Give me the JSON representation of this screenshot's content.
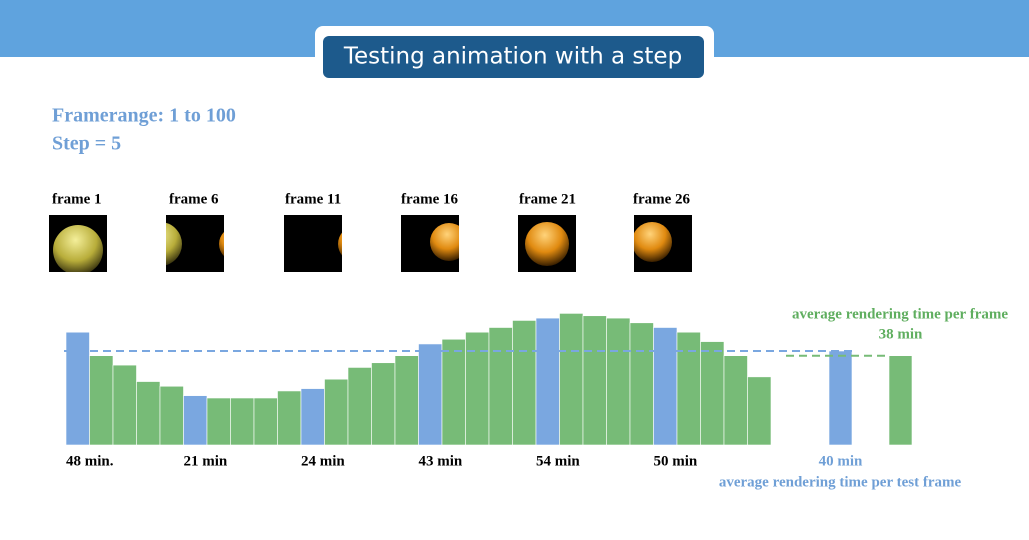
{
  "header": {
    "title": "Testing animation with a step"
  },
  "settings": {
    "framerange": "Framerange: 1 to 100",
    "step": "Step = 5"
  },
  "frames": [
    "frame 1",
    "frame 6",
    "frame 11",
    "frame 16",
    "frame 21",
    "frame 26"
  ],
  "chart_data": {
    "type": "bar",
    "values": [
      48,
      38,
      34,
      27,
      25,
      21,
      20,
      20,
      20,
      23,
      24,
      28,
      33,
      35,
      38,
      43,
      45,
      48,
      50,
      53,
      54,
      56,
      55,
      54,
      52,
      50,
      48,
      44,
      38,
      29
    ],
    "value_labels": [
      "48 min.",
      null,
      null,
      null,
      null,
      "21 min",
      null,
      null,
      null,
      null,
      "24 min",
      null,
      null,
      null,
      null,
      "43 min",
      null,
      null,
      null,
      null,
      "54 min",
      null,
      null,
      null,
      null,
      "50 min",
      null,
      null,
      null,
      null
    ],
    "colors": [
      "#7aa7e0",
      "#77bb77",
      "#77bb77",
      "#77bb77",
      "#77bb77",
      "#7aa7e0",
      "#77bb77",
      "#77bb77",
      "#77bb77",
      "#77bb77",
      "#7aa7e0",
      "#77bb77",
      "#77bb77",
      "#77bb77",
      "#77bb77",
      "#7aa7e0",
      "#77bb77",
      "#77bb77",
      "#77bb77",
      "#77bb77",
      "#7aa7e0",
      "#77bb77",
      "#77bb77",
      "#77bb77",
      "#77bb77",
      "#7aa7e0",
      "#77bb77",
      "#77bb77",
      "#77bb77",
      "#77bb77"
    ],
    "ylim": [
      0,
      60
    ],
    "averages": [
      {
        "value": 40,
        "label": "40 min",
        "caption": "average rendering time per test frame",
        "color": "#7aa7e0"
      },
      {
        "value": 38,
        "label": "38 min",
        "caption": "average rendering time per frame",
        "color": "#77bb77"
      }
    ]
  }
}
